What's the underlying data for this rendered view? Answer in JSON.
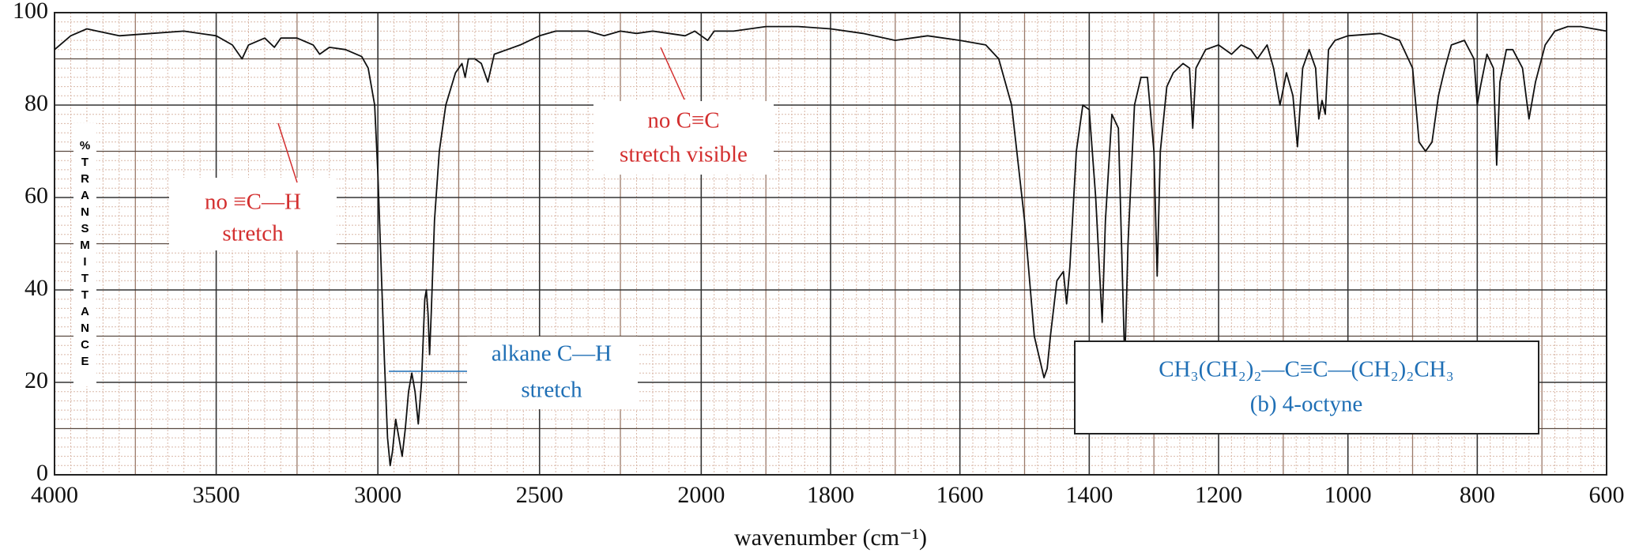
{
  "chart_data": {
    "type": "line",
    "xlabel": "wavenumber (cm⁻¹)",
    "ylabel": "%TRANSMITTANCE",
    "xlim": [
      4000,
      600
    ],
    "ylim": [
      0,
      100
    ],
    "xticks": [
      4000,
      3500,
      3000,
      2500,
      2000,
      1800,
      1600,
      1400,
      1200,
      1000,
      800,
      600
    ],
    "yticks": [
      0,
      20,
      40,
      60,
      80,
      100
    ],
    "x_scale_break": 2000,
    "grid": true,
    "series": [
      {
        "color": "#111111",
        "x": [
          4000,
          3950,
          3900,
          3800,
          3700,
          3600,
          3500,
          3450,
          3420,
          3400,
          3350,
          3320,
          3300,
          3250,
          3200,
          3180,
          3150,
          3100,
          3050,
          3030,
          3010,
          3000,
          2990,
          2980,
          2970,
          2962,
          2955,
          2945,
          2935,
          2925,
          2915,
          2905,
          2895,
          2885,
          2875,
          2865,
          2855,
          2850,
          2845,
          2840,
          2835,
          2825,
          2810,
          2790,
          2760,
          2740,
          2730,
          2720,
          2700,
          2680,
          2660,
          2640,
          2600,
          2560,
          2500,
          2450,
          2400,
          2350,
          2300,
          2250,
          2200,
          2150,
          2100,
          2050,
          2020,
          2000,
          1990,
          1980,
          1950,
          1900,
          1850,
          1800,
          1750,
          1700,
          1650,
          1600,
          1560,
          1540,
          1520,
          1500,
          1485,
          1470,
          1465,
          1460,
          1450,
          1440,
          1435,
          1430,
          1420,
          1410,
          1400,
          1390,
          1380,
          1375,
          1365,
          1355,
          1345,
          1340,
          1330,
          1320,
          1310,
          1300,
          1295,
          1290,
          1280,
          1270,
          1255,
          1245,
          1240,
          1235,
          1220,
          1200,
          1180,
          1165,
          1150,
          1140,
          1125,
          1115,
          1105,
          1095,
          1085,
          1078,
          1070,
          1060,
          1050,
          1045,
          1040,
          1035,
          1030,
          1020,
          1000,
          950,
          920,
          900,
          890,
          880,
          870,
          860,
          850,
          840,
          820,
          805,
          800,
          795,
          785,
          775,
          770,
          765,
          755,
          745,
          730,
          720,
          710,
          695,
          680,
          660,
          640,
          620,
          600
        ],
        "values": [
          92,
          95,
          96.5,
          95,
          95.5,
          96,
          95,
          93,
          90,
          93,
          94.5,
          92.5,
          94.5,
          94.5,
          93,
          91,
          92.5,
          92,
          90.5,
          88,
          80,
          65,
          45,
          25,
          8,
          2,
          5,
          12,
          8,
          4,
          10,
          18,
          22,
          18,
          11,
          20,
          38,
          40,
          35,
          26,
          35,
          55,
          70,
          80,
          87,
          89,
          86,
          90,
          90,
          89,
          85,
          91,
          92,
          93,
          95,
          96,
          96,
          96,
          95,
          96,
          95.5,
          96,
          95.5,
          95,
          96,
          95,
          94,
          96,
          96,
          97,
          97,
          96.5,
          95.5,
          94,
          95,
          94,
          93,
          90,
          80,
          55,
          30,
          21,
          23,
          30,
          42,
          44,
          37,
          45,
          70,
          80,
          79,
          60,
          33,
          55,
          78,
          75,
          24,
          50,
          80,
          86,
          86,
          70,
          43,
          70,
          84,
          87,
          89,
          88,
          75,
          88,
          92,
          93,
          91,
          93,
          92,
          90,
          93,
          88,
          80,
          87,
          82,
          71,
          88,
          92,
          88,
          77,
          81,
          78,
          92,
          94,
          95,
          95.5,
          94,
          88,
          72,
          70,
          72,
          82,
          88,
          93,
          94,
          90,
          80,
          84,
          91,
          88,
          67,
          85,
          92,
          92,
          88,
          77,
          85,
          93,
          96,
          97,
          97,
          96.5,
          96
        ]
      }
    ],
    "annotations": [
      {
        "lines": [
          "no ≡C—H",
          "stretch"
        ],
        "color": "#d32f2f"
      },
      {
        "lines": [
          "no C≡C",
          "stretch visible"
        ],
        "color": "#d32f2f"
      },
      {
        "lines": [
          "alkane C—H",
          "stretch"
        ],
        "color": "#1f6fb5"
      }
    ],
    "compound": {
      "formula": "CH₃(CH₂)₂—C≡C—(CH₂)₂CH₃",
      "label": "(b) 4-octyne",
      "color": "#1f6fb5"
    }
  }
}
